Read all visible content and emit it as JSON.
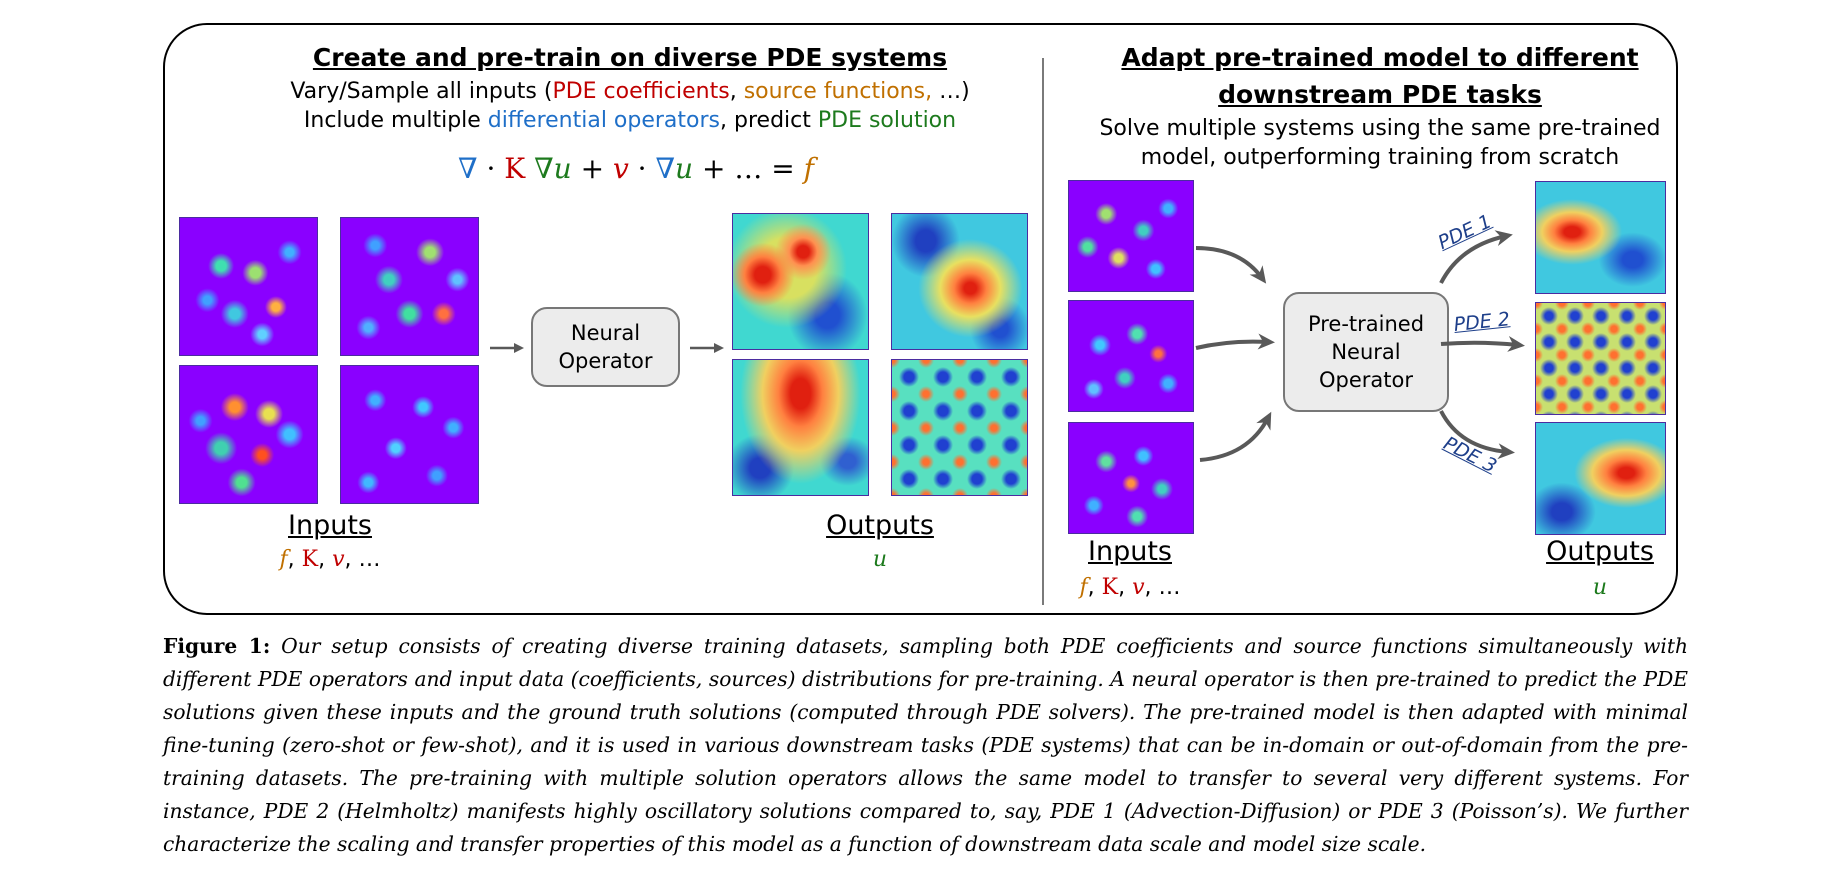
{
  "left_panel": {
    "title": "Create and pre-train on diverse PDE systems",
    "line1_prefix": "Vary/Sample all inputs (",
    "line1_coeff": "PDE coefficients",
    "line1_comma": ", ",
    "line1_source": "source functions,",
    "line1_suffix": " …)",
    "line2_prefix": "Include multiple ",
    "line2_ops": "differential operators",
    "line2_mid": ", predict ",
    "line2_sol": "PDE solution",
    "equation": {
      "nabla1": "∇",
      "dot1": " · ",
      "K": "K",
      "nabla2": " ∇",
      "u1": "u",
      "plus1": " + ",
      "v": "v",
      "dot2": " · ",
      "nabla3": "∇",
      "u2": "u",
      "plus2": " +  … = ",
      "f": "f"
    },
    "box_line1": "Neural",
    "box_line2": "Operator",
    "inputs_label": "Inputs",
    "inputs_vars": {
      "f": "f",
      "sep1": ", ",
      "K": "K",
      "sep2": ", ",
      "v": "v",
      "rest": ", …"
    },
    "outputs_label": "Outputs",
    "outputs_var": "u"
  },
  "right_panel": {
    "title_line1": "Adapt pre-trained model to different",
    "title_line2": "downstream PDE tasks",
    "desc_line1": "Solve multiple systems using the same pre-trained",
    "desc_line2": "model, outperforming training from scratch",
    "box_line1": "Pre-trained",
    "box_line2": "Neural",
    "box_line3": "Operator",
    "pde_labels": [
      "PDE 1",
      "PDE 2",
      "PDE 3"
    ],
    "inputs_label": "Inputs",
    "inputs_vars": {
      "f": "f",
      "sep1": ", ",
      "K": "K",
      "sep2": ", ",
      "v": "v",
      "rest": ", …"
    },
    "outputs_label": "Outputs",
    "outputs_var": "u"
  },
  "caption": {
    "label": "Figure 1:",
    "text": "Our setup consists of creating diverse training datasets, sampling both PDE coefficients and source functions simultaneously with different PDE operators and input data (coefficients, sources) distributions for pre-training. A neural operator is then pre-trained to predict the PDE solutions given these inputs and the ground truth solutions (computed through PDE solvers). The pre-trained model is then adapted with minimal fine-tuning (zero-shot or few-shot), and it is used in various downstream tasks (PDE systems) that can be in-domain or out-of-domain from the pre-training datasets. The pre-training with multiple solution operators allows the same model to transfer to several very different systems. For instance, PDE 2 (Helmholtz) manifests highly oscillatory solutions compared to, say, PDE 1 (Advection-Diffusion) or PDE 3 (Poisson’s). We further characterize the scaling and transfer properties of this model as a function of downstream data scale and model size scale."
  },
  "colors": {
    "coefficient": "#c00000",
    "source": "#c07000",
    "operator": "#1f6fc8",
    "solution": "#1d7a1d",
    "pde_label": "#1e3f8a"
  }
}
